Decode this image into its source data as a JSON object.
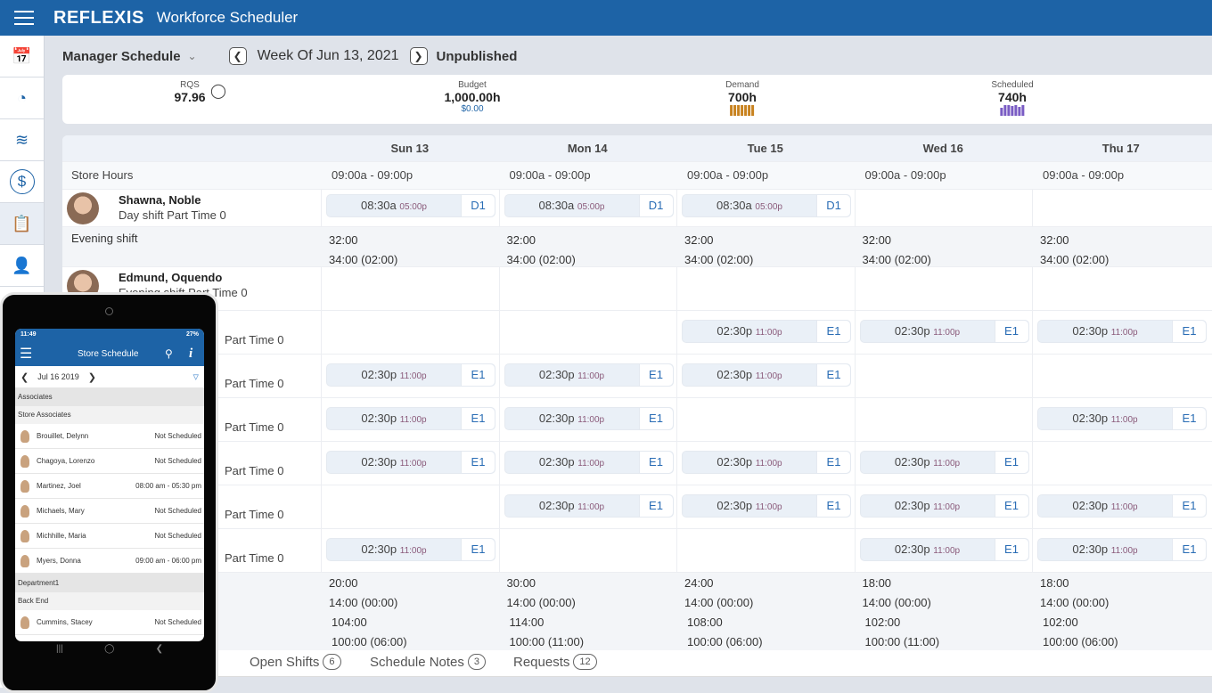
{
  "app": {
    "logo": "REFLEXIS",
    "title": "Workforce Scheduler"
  },
  "sidebar": {
    "items": [
      {
        "icon": "calendar-icon"
      },
      {
        "icon": "pie-chart-icon"
      },
      {
        "icon": "line-chart-icon"
      },
      {
        "icon": "dollar-icon"
      },
      {
        "icon": "clipboard-icon",
        "active": true
      },
      {
        "icon": "add-user-icon"
      }
    ]
  },
  "toolbar": {
    "view": "Manager Schedule",
    "week": "Week Of Jun 13, 2021",
    "status": "Unpublished"
  },
  "kpis": {
    "rqs_label": "RQS",
    "rqs_value": "97.96",
    "budget_label": "Budget",
    "budget_value": "1,000.00h",
    "budget_sub": "$0.00",
    "demand_label": "Demand",
    "demand_value": "700h",
    "demand_color": "#c8821f",
    "scheduled_label": "Scheduled",
    "scheduled_value": "740h",
    "scheduled_color": "#7a5cc4"
  },
  "days": [
    "Sun 13",
    "Mon 14",
    "Tue 15",
    "Wed 16",
    "Thu 17"
  ],
  "store_hours": {
    "label": "Store Hours",
    "values": [
      "09:00a - 09:00p",
      "09:00a - 09:00p",
      "09:00a - 09:00p",
      "09:00a - 09:00p",
      "09:00a - 09:00p"
    ]
  },
  "employees": [
    {
      "name": "Shawna, Noble",
      "shift": "Day shift",
      "type": "Part Time",
      "count": "0",
      "shifts": [
        {
          "start": "08:30a",
          "end": "05:00p",
          "code": "D1"
        },
        {
          "start": "08:30a",
          "end": "05:00p",
          "code": "D1"
        },
        {
          "start": "08:30a",
          "end": "05:00p",
          "code": "D1"
        },
        null,
        null
      ]
    }
  ],
  "evening": {
    "label": "Evening shift",
    "values": [
      [
        "32:00",
        "34:00 (02:00)"
      ],
      [
        "32:00",
        "34:00 (02:00)"
      ],
      [
        "32:00",
        "34:00 (02:00)"
      ],
      [
        "32:00",
        "34:00 (02:00)"
      ],
      [
        "32:00",
        "34:00 (02:00)"
      ]
    ]
  },
  "evening_employees": [
    {
      "name": "Edmund, Oquendo",
      "shift": "Evening shift",
      "type": "Part Time",
      "count": "0",
      "shifts": [
        null,
        null,
        null,
        null,
        null
      ]
    },
    {
      "name": "",
      "shift": "",
      "type": "Part Time",
      "count": "0",
      "shifts": [
        null,
        null,
        {
          "start": "02:30p",
          "end": "11:00p",
          "code": "E1"
        },
        {
          "start": "02:30p",
          "end": "11:00p",
          "code": "E1"
        },
        {
          "start": "02:30p",
          "end": "11:00p",
          "code": "E1"
        }
      ]
    },
    {
      "name": "",
      "shift": "",
      "type": "Part Time",
      "count": "0",
      "shifts": [
        {
          "start": "02:30p",
          "end": "11:00p",
          "code": "E1"
        },
        {
          "start": "02:30p",
          "end": "11:00p",
          "code": "E1"
        },
        {
          "start": "02:30p",
          "end": "11:00p",
          "code": "E1"
        },
        null,
        null
      ]
    },
    {
      "name": "",
      "shift": "",
      "type": "Part Time",
      "count": "0",
      "shifts": [
        {
          "start": "02:30p",
          "end": "11:00p",
          "code": "E1"
        },
        {
          "start": "02:30p",
          "end": "11:00p",
          "code": "E1"
        },
        null,
        null,
        {
          "start": "02:30p",
          "end": "11:00p",
          "code": "E1"
        }
      ]
    },
    {
      "name": "",
      "shift": "",
      "type": "Part Time",
      "count": "0",
      "shifts": [
        {
          "start": "02:30p",
          "end": "11:00p",
          "code": "E1"
        },
        {
          "start": "02:30p",
          "end": "11:00p",
          "code": "E1"
        },
        {
          "start": "02:30p",
          "end": "11:00p",
          "code": "E1"
        },
        {
          "start": "02:30p",
          "end": "11:00p",
          "code": "E1"
        },
        null
      ]
    },
    {
      "name": "",
      "shift": "",
      "type": "Part Time",
      "count": "0",
      "shifts": [
        null,
        {
          "start": "02:30p",
          "end": "11:00p",
          "code": "E1"
        },
        {
          "start": "02:30p",
          "end": "11:00p",
          "code": "E1"
        },
        {
          "start": "02:30p",
          "end": "11:00p",
          "code": "E1"
        },
        {
          "start": "02:30p",
          "end": "11:00p",
          "code": "E1"
        }
      ]
    },
    {
      "name": "",
      "shift": "",
      "type": "Part Time",
      "count": "0",
      "shifts": [
        {
          "start": "02:30p",
          "end": "11:00p",
          "code": "E1"
        },
        null,
        null,
        {
          "start": "02:30p",
          "end": "11:00p",
          "code": "E1"
        },
        {
          "start": "02:30p",
          "end": "11:00p",
          "code": "E1"
        }
      ]
    }
  ],
  "summary": [
    [
      "20:00",
      "14:00 (00:00)",
      "104:00",
      "100:00 (06:00)"
    ],
    [
      "30:00",
      "14:00 (00:00)",
      "114:00",
      "100:00 (11:00)"
    ],
    [
      "24:00",
      "14:00 (00:00)",
      "108:00",
      "100:00 (06:00)"
    ],
    [
      "18:00",
      "14:00 (00:00)",
      "102:00",
      "100:00 (11:00)"
    ],
    [
      "18:00",
      "14:00 (00:00)",
      "102:00",
      "100:00 (06:00)"
    ]
  ],
  "tabs": [
    {
      "label": "Open Shifts",
      "count": "6"
    },
    {
      "label": "Schedule Notes",
      "count": "3"
    },
    {
      "label": "Requests",
      "count": "12"
    }
  ],
  "phone": {
    "time": "11:49",
    "status": "27%",
    "title": "Store Schedule",
    "date": "Jul 16 2019",
    "groups": [
      {
        "section": "Associates",
        "sub": "Store Associates",
        "people": [
          {
            "name": "Brouillet, Delynn",
            "status": "Not Scheduled"
          },
          {
            "name": "Chagoya, Lorenzo",
            "status": "Not Scheduled"
          },
          {
            "name": "Martinez, Joel",
            "status": "08:00 am - 05:30 pm"
          },
          {
            "name": "Michaels, Mary",
            "status": "Not Scheduled"
          },
          {
            "name": "Michhille, Maria",
            "status": "Not Scheduled"
          },
          {
            "name": "Myers, Donna",
            "status": "09:00 am - 06:00 pm"
          }
        ]
      },
      {
        "section": "Department1",
        "sub": "Back End",
        "people": [
          {
            "name": "Cummins, Stacey",
            "status": "Not Scheduled"
          }
        ]
      }
    ]
  }
}
